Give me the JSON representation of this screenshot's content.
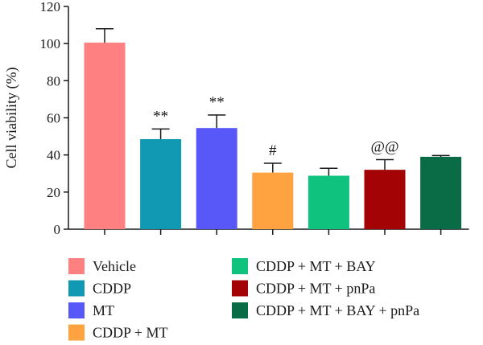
{
  "chart_data": {
    "type": "bar",
    "ylabel": "Cell viability (%)",
    "ylim": [
      0,
      120
    ],
    "yticks": [
      0,
      20,
      40,
      60,
      80,
      100,
      120
    ],
    "categories": [
      "Vehicle",
      "CDDP",
      "MT",
      "CDDP + MT",
      "CDDP + MT + BAY",
      "CDDP + MT + pnPa",
      "CDDP + MT + BAY + pnPa"
    ],
    "values": [
      100.5,
      48.5,
      54.5,
      30.5,
      28.8,
      32,
      39
    ],
    "errors": [
      7.5,
      5.5,
      7,
      5,
      4,
      5.5,
      0.7
    ],
    "colors": [
      "#FF8080",
      "#1198B2",
      "#5858F8",
      "#FEA33F",
      "#0FC27E",
      "#A40306",
      "#0A6B47"
    ],
    "annotations": [
      "",
      "**",
      "**",
      "#",
      "",
      "@@",
      ""
    ],
    "legend": {
      "placement": "bottom",
      "columns": [
        [
          "Vehicle",
          "CDDP",
          "MT",
          "CDDP + MT"
        ],
        [
          "CDDP + MT + BAY",
          "CDDP + MT + pnPa",
          "CDDP + MT + BAY + pnPa"
        ]
      ]
    },
    "grid": false
  }
}
